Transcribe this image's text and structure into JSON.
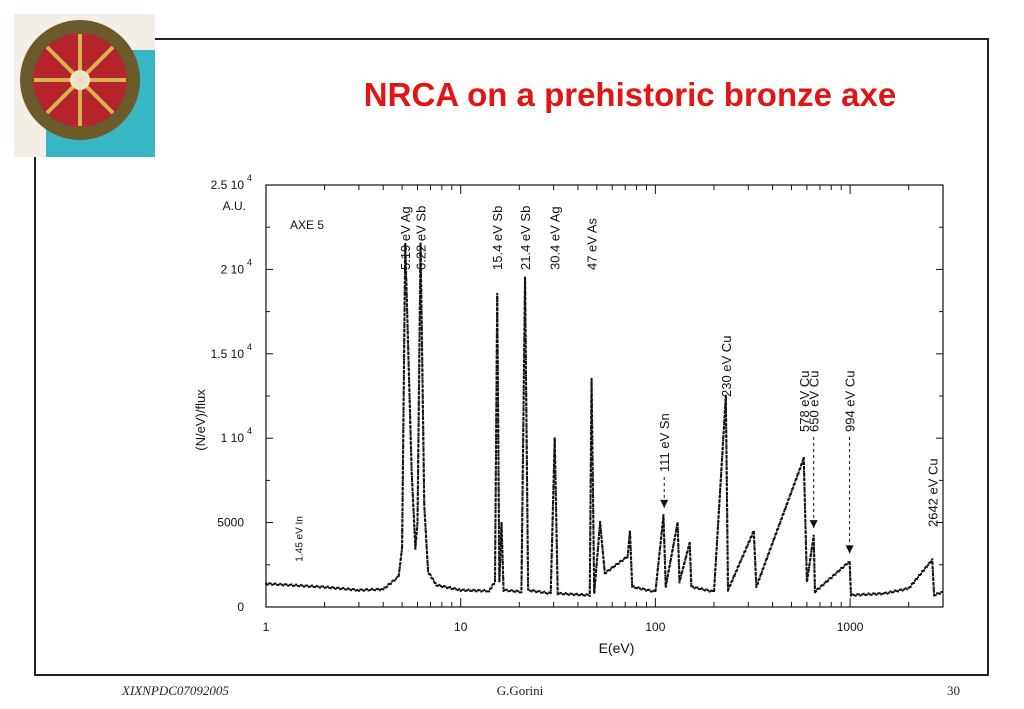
{
  "slide": {
    "title": "NRCA on a prehistoric bronze axe",
    "footer_left": "XIXNPDC07092005",
    "footer_center": "G.Gorini",
    "page_number": "30",
    "photo_icon": "bronze-artifact-photo"
  },
  "chart_data": {
    "type": "line",
    "title": "",
    "xlabel": "E(eV)",
    "ylabel": "(N/eV)/flux",
    "y_unit": "A.U.",
    "inner_label": "AXE 5",
    "xscale": "log",
    "xlim": [
      1,
      3000
    ],
    "ylim": [
      0,
      25000
    ],
    "x_tick_labels": [
      {
        "value": 1,
        "label": "1"
      },
      {
        "value": 10,
        "label": "10"
      },
      {
        "value": 100,
        "label": "100"
      },
      {
        "value": 1000,
        "label": "1000"
      }
    ],
    "y_tick_labels": [
      {
        "value": 0,
        "mantissa": "0",
        "exp": ""
      },
      {
        "value": 5000,
        "mantissa": "5000",
        "exp": ""
      },
      {
        "value": 10000,
        "mantissa": "1 10",
        "exp": "4"
      },
      {
        "value": 15000,
        "mantissa": "1.5 10",
        "exp": "4"
      },
      {
        "value": 20000,
        "mantissa": "2 10",
        "exp": "4"
      },
      {
        "value": 25000,
        "mantissa": "2.5 10",
        "exp": "4"
      }
    ],
    "grid": false,
    "baseline": [
      [
        1,
        1380
      ],
      [
        2,
        1180
      ],
      [
        3,
        1000
      ],
      [
        4,
        1050
      ],
      [
        4.8,
        1800
      ],
      [
        5.0,
        3500
      ],
      [
        5.19,
        21500
      ],
      [
        5.6,
        8000
      ],
      [
        5.85,
        3500
      ],
      [
        6.0,
        5000
      ],
      [
        6.22,
        21500
      ],
      [
        6.5,
        6000
      ],
      [
        6.8,
        2100
      ],
      [
        7.5,
        1300
      ],
      [
        10,
        1000
      ],
      [
        14,
        950
      ],
      [
        15.0,
        1500
      ],
      [
        15.4,
        18500
      ],
      [
        15.8,
        1500
      ],
      [
        16.2,
        5000
      ],
      [
        16.6,
        1000
      ],
      [
        20.5,
        900
      ],
      [
        21.4,
        19500
      ],
      [
        22.2,
        1000
      ],
      [
        29,
        800
      ],
      [
        30.4,
        10000
      ],
      [
        31.5,
        800
      ],
      [
        46,
        700
      ],
      [
        47,
        13500
      ],
      [
        48.5,
        800
      ],
      [
        52,
        5000
      ],
      [
        55,
        2000
      ],
      [
        72,
        3000
      ],
      [
        74,
        4500
      ],
      [
        76,
        1200
      ],
      [
        100,
        900
      ],
      [
        110,
        5400
      ],
      [
        113,
        1200
      ],
      [
        130,
        5000
      ],
      [
        133,
        1500
      ],
      [
        150,
        3800
      ],
      [
        153,
        1200
      ],
      [
        200,
        900
      ],
      [
        230,
        12500
      ],
      [
        236,
        1000
      ],
      [
        320,
        4500
      ],
      [
        330,
        1200
      ],
      [
        578,
        8800
      ],
      [
        600,
        1500
      ],
      [
        650,
        4200
      ],
      [
        660,
        900
      ],
      [
        994,
        2700
      ],
      [
        1010,
        700
      ],
      [
        1500,
        800
      ],
      [
        2000,
        1100
      ],
      [
        2642,
        2800
      ],
      [
        2700,
        700
      ],
      [
        3000,
        900
      ]
    ],
    "peaks": [
      {
        "x": 1.45,
        "y": 1500,
        "label": "1.45 eV In",
        "small": true
      },
      {
        "x": 5.19,
        "y": 21500,
        "label": "5.19 eV Ag"
      },
      {
        "x": 6.22,
        "y": 21500,
        "label": "6.22 eV Sb"
      },
      {
        "x": 15.4,
        "y": 18500,
        "label": "15.4 eV Sb"
      },
      {
        "x": 21.4,
        "y": 19500,
        "label": "21.4 eV Sb"
      },
      {
        "x": 30.4,
        "y": 10000,
        "label": "30.4 eV Ag"
      },
      {
        "x": 47,
        "y": 13500,
        "label": "47 eV As"
      },
      {
        "x": 111,
        "y": 5400,
        "label": "111 eV Sn",
        "arrow": true
      },
      {
        "x": 230,
        "y": 12500,
        "label": "230 eV Cu"
      },
      {
        "x": 578,
        "y": 8800,
        "label": "578 eV Cu"
      },
      {
        "x": 650,
        "y": 4200,
        "label": "650 eV Cu",
        "arrow": true
      },
      {
        "x": 994,
        "y": 2700,
        "label": "994 eV Cu",
        "arrow": true
      },
      {
        "x": 2642,
        "y": 2800,
        "label": "2642 eV  Cu"
      }
    ]
  }
}
